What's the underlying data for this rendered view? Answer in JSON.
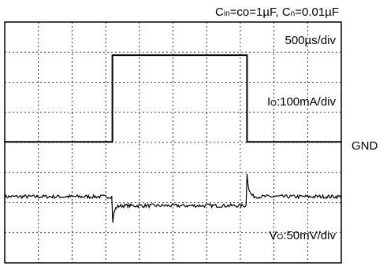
{
  "chart_data": {
    "type": "line",
    "title_parts": [
      {
        "t": "C",
        "sub": false
      },
      {
        "t": "in",
        "sub": true
      },
      {
        "t": "=co=1µF, C",
        "sub": false
      },
      {
        "t": "n",
        "sub": true
      },
      {
        "t": "=0.01µF",
        "sub": false
      }
    ],
    "time_div_label": "500µs/div",
    "io_label_parts": [
      {
        "t": "I",
        "sub": false
      },
      {
        "t": "O",
        "sub": true
      },
      {
        "t": ":100mA/div",
        "sub": false
      }
    ],
    "vo_label_parts": [
      {
        "t": "V",
        "sub": false
      },
      {
        "t": "O",
        "sub": true
      },
      {
        "t": ":50mV/div",
        "sub": false
      }
    ],
    "gnd_label": "GND",
    "grid": true,
    "divisions": {
      "x": 10,
      "y": 8
    },
    "xlim_div": [
      0,
      10
    ],
    "ylim_div": [
      0,
      8
    ],
    "series": [
      {
        "kind": "current",
        "points_div": [
          [
            0,
            4.02
          ],
          [
            3.2,
            4.02
          ],
          [
            3.2,
            6.9
          ],
          [
            7.2,
            6.9
          ],
          [
            7.2,
            4.02
          ],
          [
            10,
            4.02
          ]
        ]
      },
      {
        "kind": "voltage",
        "baseline_div": 2.2,
        "step_low_div": 1.9,
        "undershoot_div": 1.25,
        "overshoot_div": 3.0,
        "step_start_div": 3.2,
        "step_end_div": 7.2
      }
    ]
  }
}
